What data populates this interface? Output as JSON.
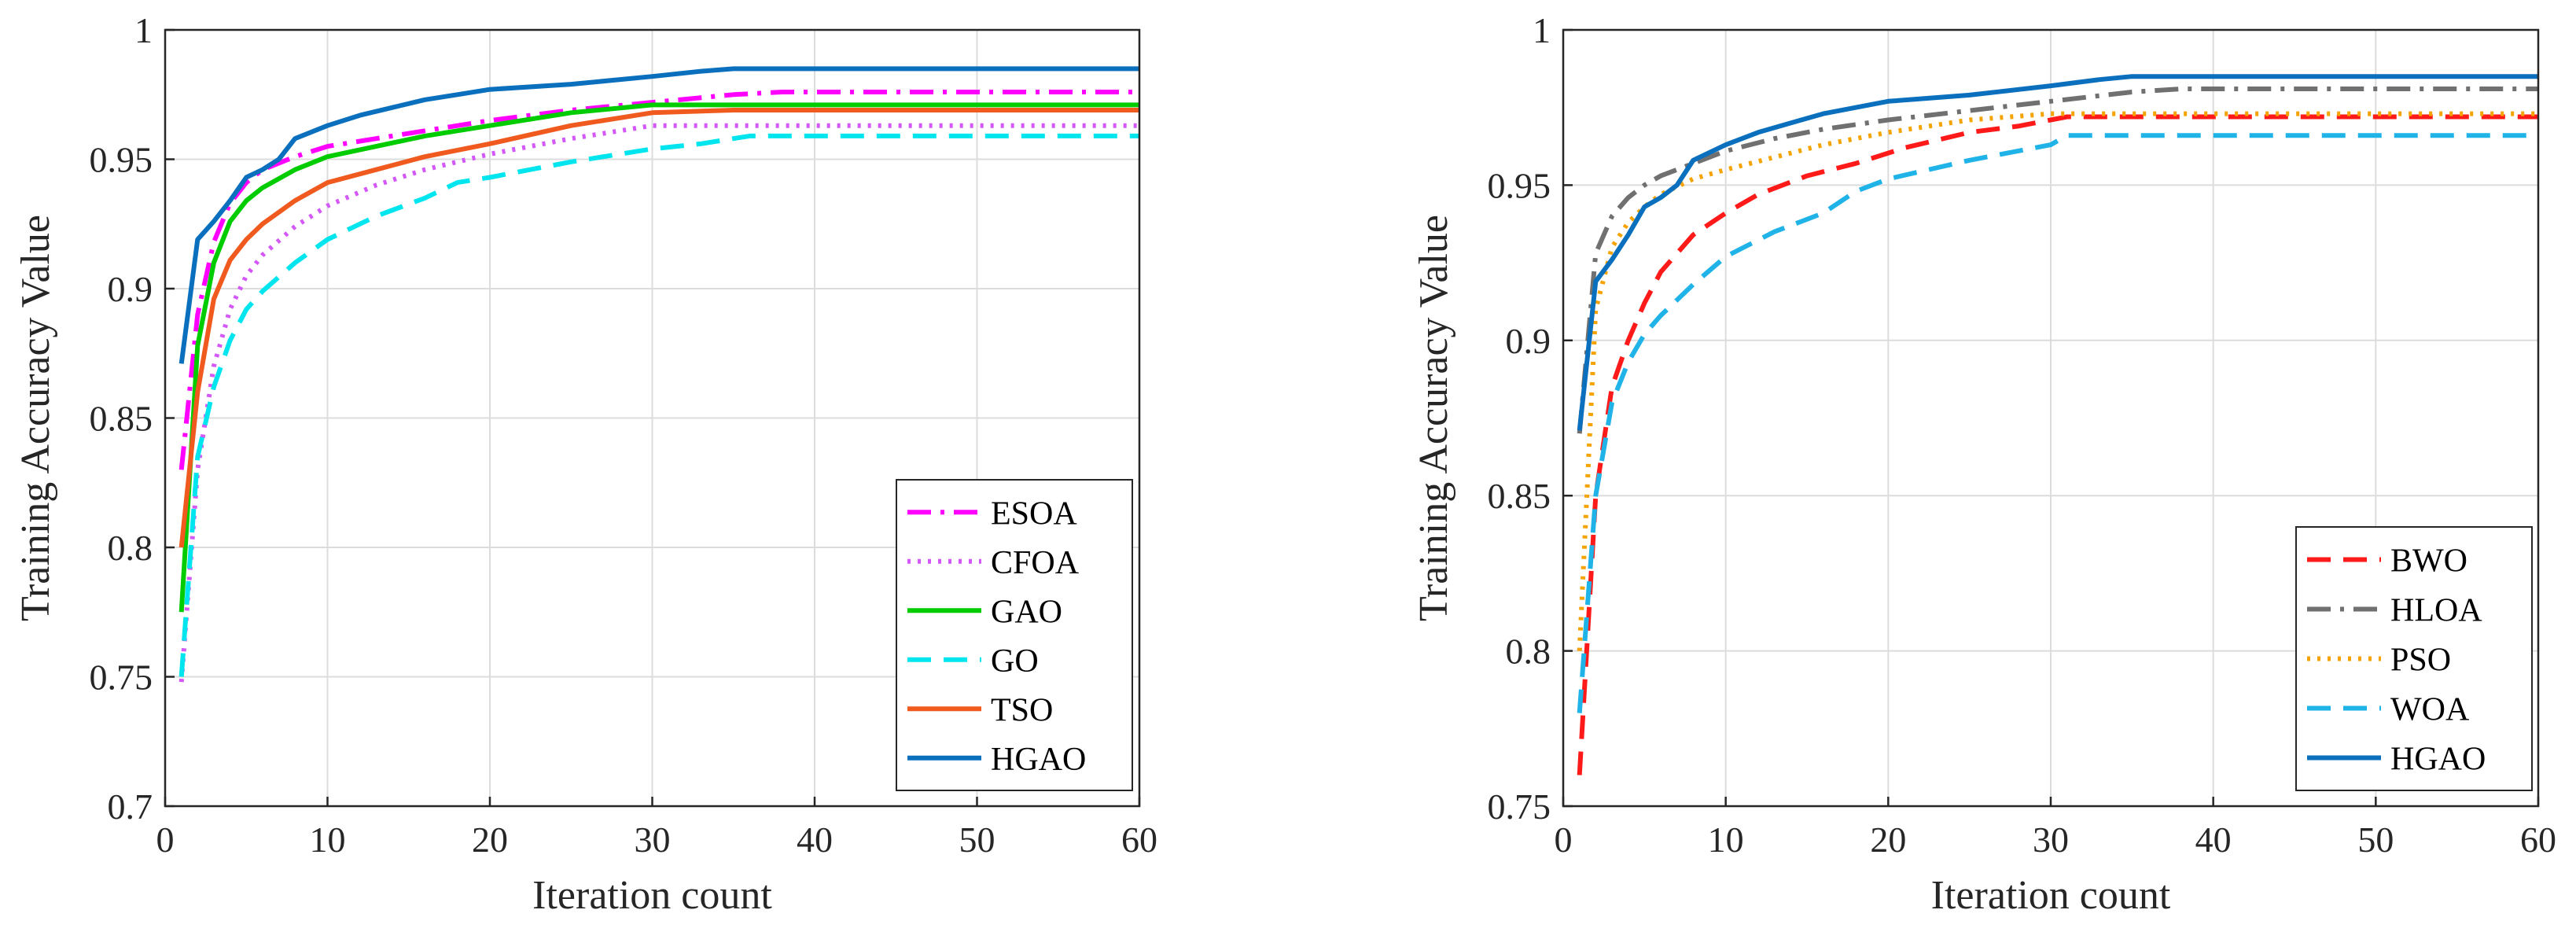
{
  "chart_data": [
    {
      "type": "line",
      "xlabel": "Iteration count",
      "ylabel": "Training Accuracy Value",
      "xlim": [
        0,
        60
      ],
      "ylim": [
        0.7,
        1.0
      ],
      "xticks": [
        "0",
        "10",
        "20",
        "30",
        "40",
        "50",
        "60"
      ],
      "yticks": [
        "0.7",
        "0.75",
        "0.8",
        "0.85",
        "0.9",
        "0.95",
        "1"
      ],
      "grid": true,
      "legend_position": "bottom-right",
      "series": [
        {
          "name": "ESOA",
          "color": "#ff00ff",
          "dash": "dashdot",
          "x": [
            1,
            2,
            3,
            4,
            5,
            6,
            8,
            10,
            13,
            16,
            20,
            25,
            30,
            35,
            38,
            45,
            60
          ],
          "y": [
            0.83,
            0.89,
            0.918,
            0.933,
            0.941,
            0.946,
            0.951,
            0.955,
            0.958,
            0.961,
            0.965,
            0.969,
            0.972,
            0.975,
            0.976,
            0.976,
            0.976
          ]
        },
        {
          "name": "CFOA",
          "color": "#d358f7",
          "dash": "dotted",
          "x": [
            1,
            2,
            3,
            4,
            5,
            6,
            8,
            10,
            13,
            16,
            20,
            25,
            30,
            35,
            45,
            60
          ],
          "y": [
            0.748,
            0.83,
            0.87,
            0.892,
            0.905,
            0.913,
            0.924,
            0.932,
            0.94,
            0.946,
            0.952,
            0.958,
            0.963,
            0.963,
            0.963,
            0.963
          ]
        },
        {
          "name": "GAO",
          "color": "#00cc00",
          "dash": "solid",
          "x": [
            1,
            2,
            3,
            4,
            5,
            6,
            8,
            10,
            13,
            16,
            20,
            25,
            30,
            35,
            45,
            60
          ],
          "y": [
            0.775,
            0.878,
            0.91,
            0.926,
            0.934,
            0.939,
            0.946,
            0.951,
            0.955,
            0.959,
            0.963,
            0.968,
            0.971,
            0.971,
            0.971,
            0.971
          ]
        },
        {
          "name": "GO",
          "color": "#00e5ee",
          "dash": "dashed",
          "x": [
            1,
            2,
            3,
            4,
            5,
            6,
            8,
            10,
            13,
            16,
            18,
            20,
            25,
            30,
            33,
            36,
            45,
            60
          ],
          "y": [
            0.75,
            0.835,
            0.862,
            0.88,
            0.892,
            0.899,
            0.91,
            0.919,
            0.928,
            0.935,
            0.941,
            0.943,
            0.949,
            0.954,
            0.956,
            0.959,
            0.959,
            0.959
          ]
        },
        {
          "name": "TSO",
          "color": "#f05a1e",
          "dash": "solid",
          "x": [
            1,
            2,
            3,
            4,
            5,
            6,
            8,
            10,
            13,
            16,
            20,
            25,
            30,
            35,
            45,
            60
          ],
          "y": [
            0.8,
            0.86,
            0.896,
            0.911,
            0.919,
            0.925,
            0.934,
            0.941,
            0.946,
            0.951,
            0.956,
            0.963,
            0.968,
            0.969,
            0.969,
            0.969
          ]
        },
        {
          "name": "HGAO",
          "color": "#0a6fbd",
          "dash": "solid",
          "x": [
            1,
            2,
            3,
            4,
            5,
            6,
            7,
            8,
            10,
            12,
            14,
            16,
            18,
            20,
            25,
            30,
            33,
            35,
            45,
            60
          ],
          "y": [
            0.871,
            0.919,
            0.926,
            0.934,
            0.943,
            0.946,
            0.95,
            0.958,
            0.963,
            0.967,
            0.97,
            0.973,
            0.975,
            0.977,
            0.979,
            0.982,
            0.984,
            0.985,
            0.985,
            0.985
          ]
        }
      ]
    },
    {
      "type": "line",
      "xlabel": "Iteration count",
      "ylabel": "Training Accuracy Value",
      "xlim": [
        0,
        60
      ],
      "ylim": [
        0.75,
        1.0
      ],
      "xticks": [
        "0",
        "10",
        "20",
        "30",
        "40",
        "50",
        "60"
      ],
      "yticks": [
        "0.75",
        "0.8",
        "0.85",
        "0.9",
        "0.95",
        "1"
      ],
      "grid": true,
      "legend_position": "bottom-right",
      "series": [
        {
          "name": "BWO",
          "color": "#ff1a1a",
          "dash": "dashed",
          "x": [
            1,
            2,
            3,
            4,
            5,
            6,
            8,
            10,
            12,
            15,
            18,
            21,
            25,
            28,
            30,
            31,
            40,
            60
          ],
          "y": [
            0.76,
            0.85,
            0.885,
            0.9,
            0.912,
            0.922,
            0.934,
            0.941,
            0.947,
            0.953,
            0.957,
            0.962,
            0.967,
            0.969,
            0.971,
            0.972,
            0.972,
            0.972
          ]
        },
        {
          "name": "HLOA",
          "color": "#707070",
          "dash": "dashdot",
          "x": [
            1,
            2,
            3,
            4,
            5,
            6,
            8,
            10,
            13,
            16,
            20,
            25,
            30,
            35,
            38,
            40,
            60
          ],
          "y": [
            0.87,
            0.928,
            0.94,
            0.946,
            0.95,
            0.953,
            0.957,
            0.961,
            0.965,
            0.968,
            0.971,
            0.974,
            0.977,
            0.98,
            0.981,
            0.981,
            0.981
          ]
        },
        {
          "name": "PSO",
          "color": "#f5a300",
          "dash": "dotted",
          "x": [
            1,
            2,
            3,
            4,
            5,
            6,
            8,
            10,
            13,
            16,
            20,
            25,
            30,
            35,
            60
          ],
          "y": [
            0.8,
            0.91,
            0.93,
            0.938,
            0.943,
            0.947,
            0.952,
            0.955,
            0.959,
            0.963,
            0.967,
            0.971,
            0.973,
            0.973,
            0.973
          ]
        },
        {
          "name": "WOA",
          "color": "#1fb3e8",
          "dash": "dashed",
          "x": [
            1,
            2,
            3,
            4,
            5,
            6,
            8,
            10,
            13,
            16,
            18,
            20,
            25,
            30,
            31,
            40,
            60
          ],
          "y": [
            0.78,
            0.85,
            0.88,
            0.893,
            0.902,
            0.908,
            0.918,
            0.927,
            0.935,
            0.941,
            0.948,
            0.952,
            0.958,
            0.963,
            0.966,
            0.966,
            0.966
          ]
        },
        {
          "name": "HGAO",
          "color": "#0a6fbd",
          "dash": "solid",
          "x": [
            1,
            2,
            3,
            4,
            5,
            6,
            7,
            8,
            10,
            12,
            14,
            16,
            18,
            20,
            25,
            30,
            33,
            35,
            45,
            60
          ],
          "y": [
            0.871,
            0.919,
            0.926,
            0.934,
            0.943,
            0.946,
            0.95,
            0.958,
            0.963,
            0.967,
            0.97,
            0.973,
            0.975,
            0.977,
            0.979,
            0.982,
            0.984,
            0.985,
            0.985,
            0.985
          ]
        }
      ]
    }
  ]
}
